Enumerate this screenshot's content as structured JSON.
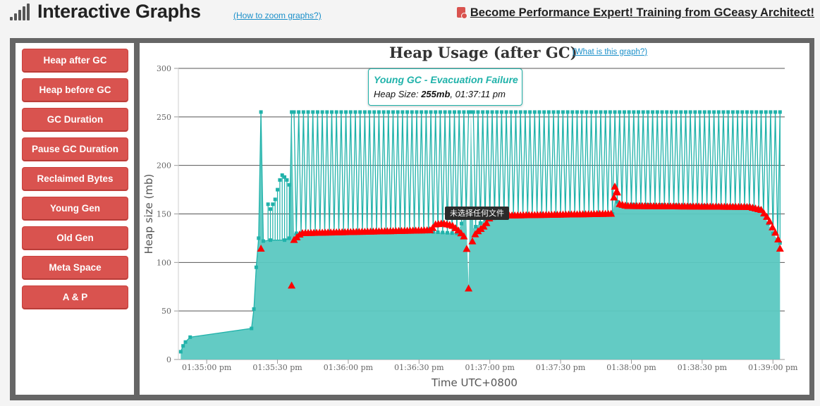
{
  "header": {
    "title": "Interactive Graphs",
    "zoom_link": "(How to zoom graphs?)",
    "promo": "Become Performance Expert! Training from GCeasy Architect!",
    "promo_icon": "certificate-icon",
    "signal_icon": "signal-bars-icon"
  },
  "sidebar": {
    "items": [
      {
        "label": "Heap after GC"
      },
      {
        "label": "Heap before GC"
      },
      {
        "label": "GC Duration"
      },
      {
        "label": "Pause GC Duration"
      },
      {
        "label": "Reclaimed Bytes"
      },
      {
        "label": "Young Gen"
      },
      {
        "label": "Old Gen"
      },
      {
        "label": "Meta Space"
      },
      {
        "label": "A & P"
      }
    ]
  },
  "chart": {
    "help_link": "(What is this graph?)"
  },
  "tooltip": {
    "title": "Young GC - Evacuation Failure",
    "label": "Heap Size: ",
    "value": "255mb",
    "time": ", 01:37:11 pm"
  },
  "dark_tooltip": {
    "text": "未选择任何文件"
  },
  "colors": {
    "series_line": "#20b2aa",
    "series_fill": "#5bc8c1",
    "full_gc_marker": "#ff0000",
    "button": "#d9534f"
  },
  "chart_data": {
    "type": "area",
    "title": "Heap Usage (after GC)",
    "xlabel": "Time UTC+0800",
    "ylabel": "Heap size (mb)",
    "ylim": [
      0,
      300
    ],
    "yticks": [
      0,
      50,
      100,
      150,
      200,
      250,
      300
    ],
    "xlim": [
      "01:34:48 pm",
      "01:39:05 pm"
    ],
    "xticks": [
      "01:35:00 pm",
      "01:35:30 pm",
      "01:36:00 pm",
      "01:36:30 pm",
      "01:37:00 pm",
      "01:37:30 pm",
      "01:38:00 pm",
      "01:38:30 pm",
      "01:39:00 pm"
    ],
    "grid": true,
    "series": [
      {
        "kind": "young-gc",
        "marker": "square",
        "base_points": [
          [
            "01:34:49 pm",
            8
          ],
          [
            "01:34:50 pm",
            14
          ],
          [
            "01:34:51 pm",
            18
          ],
          [
            "01:34:53 pm",
            23
          ],
          [
            "01:35:19 pm",
            32
          ],
          [
            "01:35:20 pm",
            52
          ],
          [
            "01:35:21 pm",
            95
          ],
          [
            "01:35:22 pm",
            125
          ],
          [
            "01:35:23 pm",
            255
          ],
          [
            "01:35:24 pm",
            122
          ],
          [
            "01:35:27 pm",
            123
          ],
          [
            "01:35:33 pm",
            123
          ],
          [
            "01:35:35 pm",
            125
          ],
          [
            "01:35:36 pm",
            255
          ],
          [
            "01:35:37 pm",
            130
          ],
          [
            "01:36:25 pm",
            133
          ],
          [
            "01:36:46 pm",
            130
          ],
          [
            "01:36:50 pm",
            150
          ],
          [
            "01:36:51 pm",
            75
          ],
          [
            "01:36:52 pm",
            255
          ],
          [
            "01:36:53 pm",
            135
          ],
          [
            "01:37:00 pm",
            148
          ],
          [
            "01:37:52 pm",
            150
          ],
          [
            "01:37:53 pm",
            165
          ],
          [
            "01:37:55 pm",
            160
          ],
          [
            "01:38:50 pm",
            158
          ],
          [
            "01:38:55 pm",
            155
          ],
          [
            "01:39:00 pm",
            130
          ],
          [
            "01:39:03 pm",
            120
          ]
        ],
        "oscillation": {
          "from": "01:35:36 pm",
          "to": "01:39:03 pm",
          "peak": 255,
          "period_s": 2
        },
        "early_spikes": [
          [
            "01:35:29 pm",
            165
          ],
          [
            "01:35:30 pm",
            175
          ],
          [
            "01:35:31 pm",
            185
          ],
          [
            "01:35:32 pm",
            190
          ],
          [
            "01:35:33 pm",
            188
          ],
          [
            "01:35:34 pm",
            185
          ],
          [
            "01:35:35 pm",
            180
          ],
          [
            "01:35:26 pm",
            160
          ],
          [
            "01:35:27 pm",
            155
          ],
          [
            "01:35:28 pm",
            160
          ]
        ]
      },
      {
        "kind": "full-gc",
        "marker": "triangle",
        "points": [
          [
            "01:35:23 pm",
            114
          ],
          [
            "01:35:36 pm",
            76
          ],
          [
            "01:35:37 pm",
            123
          ],
          [
            "01:35:40 pm",
            130
          ],
          [
            "01:36:35 pm",
            133
          ],
          [
            "01:36:37 pm",
            139
          ],
          [
            "01:36:40 pm",
            140
          ],
          [
            "01:36:44 pm",
            138
          ],
          [
            "01:36:47 pm",
            132
          ],
          [
            "01:36:50 pm",
            124
          ],
          [
            "01:36:51 pm",
            73
          ],
          [
            "01:36:52 pm",
            118
          ],
          [
            "01:36:54 pm",
            130
          ],
          [
            "01:36:58 pm",
            138
          ],
          [
            "01:37:00 pm",
            146
          ],
          [
            "01:37:03 pm",
            148
          ],
          [
            "01:37:52 pm",
            150
          ],
          [
            "01:37:53 pm",
            178
          ],
          [
            "01:37:54 pm",
            172
          ],
          [
            "01:37:55 pm",
            160
          ],
          [
            "01:37:58 pm",
            158
          ],
          [
            "01:38:50 pm",
            157
          ],
          [
            "01:38:55 pm",
            154
          ],
          [
            "01:38:58 pm",
            145
          ],
          [
            "01:39:00 pm",
            135
          ],
          [
            "01:39:02 pm",
            126
          ],
          [
            "01:39:03 pm",
            114
          ]
        ]
      }
    ]
  }
}
